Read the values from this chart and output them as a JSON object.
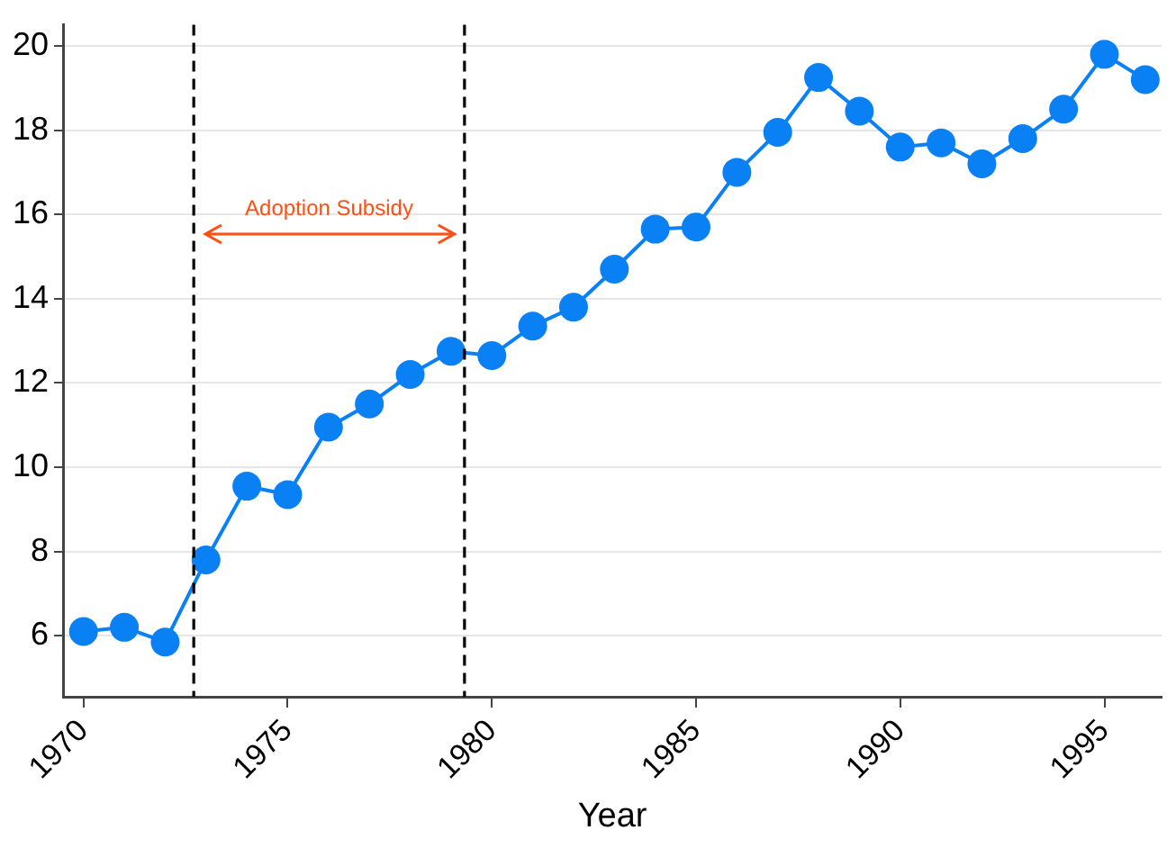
{
  "chart_data": {
    "type": "line",
    "xlabel": "Year",
    "x": [
      1970,
      1971,
      1972,
      1973,
      1974,
      1975,
      1976,
      1977,
      1978,
      1979,
      1980,
      1981,
      1982,
      1983,
      1984,
      1985,
      1986,
      1987,
      1988,
      1989,
      1990,
      1991,
      1992,
      1993,
      1994,
      1995,
      1996
    ],
    "series": [
      {
        "color": "#0a80f5",
        "values": [
          6.1,
          6.2,
          5.85,
          7.8,
          9.55,
          9.35,
          10.95,
          11.5,
          12.2,
          12.75,
          12.65,
          13.35,
          13.8,
          14.7,
          15.65,
          15.7,
          17.0,
          17.95,
          19.25,
          18.45,
          17.6,
          17.7,
          17.2,
          17.8,
          18.5,
          19.8,
          19.2
        ]
      }
    ],
    "xlim": [
      1969.5,
      1996.4
    ],
    "xticks": [
      1970,
      1975,
      1980,
      1985,
      1990,
      1995
    ],
    "ylim": [
      4.55,
      20.5
    ],
    "yticks": [
      6,
      8,
      10,
      12,
      14,
      16,
      18,
      20
    ],
    "grid": "y",
    "legend": false,
    "marker": "circle",
    "line_style": "solid",
    "ref_lines": [
      {
        "axis": "x",
        "value": 1972.7,
        "color": "#000000",
        "line_style": "dashed"
      },
      {
        "axis": "x",
        "value": 1979.33,
        "color": "#000000",
        "line_style": "dashed"
      }
    ],
    "annotations": [
      "Adoption Subsidy"
    ]
  }
}
